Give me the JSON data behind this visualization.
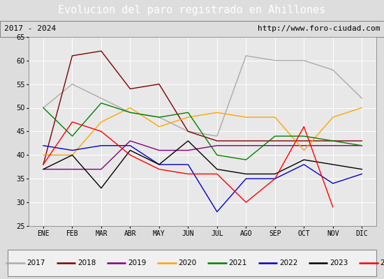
{
  "title": "Evolucion del paro registrado en Ahillones",
  "subtitle_left": "2017 - 2024",
  "subtitle_right": "http://www.foro-ciudad.com",
  "months": [
    "ENE",
    "FEB",
    "MAR",
    "ABR",
    "MAY",
    "JUN",
    "JUL",
    "AGO",
    "SEP",
    "OCT",
    "NOV",
    "DIC"
  ],
  "ylim": [
    25,
    65
  ],
  "yticks": [
    25,
    30,
    35,
    40,
    45,
    50,
    55,
    60,
    65
  ],
  "series": {
    "2017": {
      "color": "#aaaaaa",
      "values": [
        50,
        55,
        52,
        49,
        48,
        45,
        44,
        61,
        60,
        60,
        58,
        52
      ]
    },
    "2018": {
      "color": "#800000",
      "values": [
        38,
        61,
        62,
        54,
        55,
        45,
        43,
        43,
        43,
        43,
        43,
        43
      ]
    },
    "2019": {
      "color": "#800080",
      "values": [
        37,
        37,
        37,
        43,
        41,
        41,
        42,
        42,
        42,
        42,
        42,
        42
      ]
    },
    "2020": {
      "color": "#ffa500",
      "values": [
        40,
        40,
        47,
        50,
        46,
        48,
        49,
        48,
        48,
        41,
        48,
        50
      ]
    },
    "2021": {
      "color": "#008000",
      "values": [
        50,
        44,
        51,
        49,
        48,
        49,
        40,
        39,
        44,
        44,
        43,
        42
      ]
    },
    "2022": {
      "color": "#0000cd",
      "values": [
        42,
        41,
        42,
        42,
        38,
        38,
        28,
        35,
        35,
        38,
        34,
        36
      ]
    },
    "2023": {
      "color": "#000000",
      "values": [
        37,
        40,
        33,
        41,
        38,
        43,
        37,
        36,
        36,
        39,
        38,
        37
      ]
    },
    "2024": {
      "color": "#ff0000",
      "values": [
        38,
        47,
        45,
        40,
        37,
        36,
        36,
        30,
        35,
        46,
        29,
        null
      ]
    }
  },
  "title_bg": "#4472c4",
  "title_color": "#ffffff",
  "subtitle_bg": "#dddddd",
  "plot_bg": "#e8e8e8",
  "grid_color": "#ffffff",
  "legend_bg": "#f0f0f0",
  "title_fontsize": 11,
  "subtitle_fontsize": 8,
  "tick_fontsize": 7,
  "legend_fontsize": 7.5
}
